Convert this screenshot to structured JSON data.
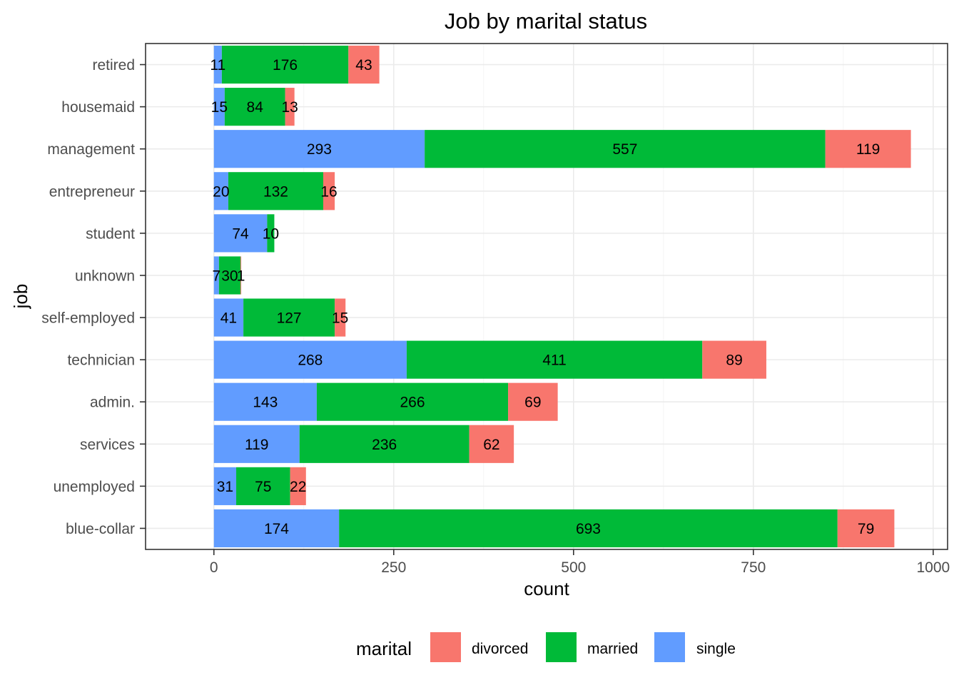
{
  "chart_data": {
    "type": "bar",
    "orientation": "horizontal",
    "stacked": true,
    "title": "Job by marital status",
    "xlabel": "count",
    "ylabel": "job",
    "xlim": [
      -95,
      1020
    ],
    "xticks": [
      0,
      250,
      500,
      750,
      1000
    ],
    "xtick_labels": [
      "0",
      "250",
      "500",
      "750",
      "1000"
    ],
    "grid": true,
    "legend": {
      "title": "marital",
      "position": "bottom",
      "entries": [
        "divorced",
        "married",
        "single"
      ]
    },
    "categories": [
      "retired",
      "housemaid",
      "management",
      "entrepreneur",
      "student",
      "unknown",
      "self-employed",
      "technician",
      "admin.",
      "services",
      "unemployed",
      "blue-collar"
    ],
    "stack_order": [
      "single",
      "married",
      "divorced"
    ],
    "series": [
      {
        "name": "single",
        "color": "#619CFF",
        "values": [
          11,
          15,
          293,
          20,
          74,
          7,
          41,
          268,
          143,
          119,
          31,
          174
        ]
      },
      {
        "name": "married",
        "color": "#00BA38",
        "values": [
          176,
          84,
          557,
          132,
          10,
          30,
          127,
          411,
          266,
          236,
          75,
          693
        ]
      },
      {
        "name": "divorced",
        "color": "#F8766D",
        "values": [
          43,
          13,
          119,
          16,
          0,
          1,
          15,
          89,
          69,
          62,
          22,
          79
        ]
      }
    ],
    "data_labels": [
      [
        "11",
        "176",
        "43"
      ],
      [
        "15",
        "84",
        "13"
      ],
      [
        "293",
        "557",
        "119"
      ],
      [
        "20",
        "132",
        "16"
      ],
      [
        "74",
        "10",
        ""
      ],
      [
        "7",
        "30",
        "1"
      ],
      [
        "41",
        "127",
        "15"
      ],
      [
        "268",
        "411",
        "89"
      ],
      [
        "143",
        "266",
        "69"
      ],
      [
        "119",
        "236",
        "62"
      ],
      [
        "31",
        "75",
        "22"
      ],
      [
        "174",
        "693",
        "79"
      ]
    ]
  }
}
